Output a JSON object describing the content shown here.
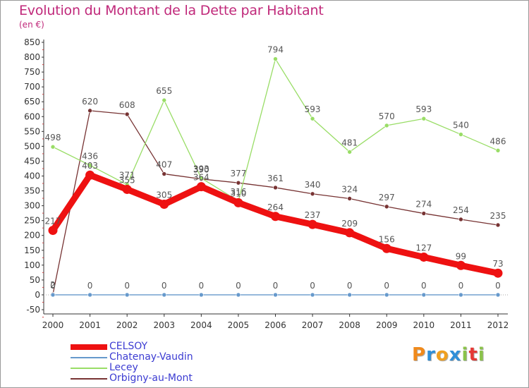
{
  "chart_data": {
    "type": "line",
    "title": "Evolution du Montant de la Dette par Habitant",
    "unit": "(en €)",
    "x": [
      "2000",
      "2001",
      "2002",
      "2003",
      "2004",
      "2005",
      "2006",
      "2007",
      "2008",
      "2009",
      "2010",
      "2011",
      "2012"
    ],
    "ylim": [
      -50,
      850
    ],
    "yticks": [
      -50,
      0,
      50,
      100,
      150,
      200,
      250,
      300,
      350,
      400,
      450,
      500,
      550,
      600,
      650,
      700,
      750,
      800,
      850
    ],
    "grid": false,
    "legend_position": "bottom-left",
    "series": [
      {
        "name": "CELSOY",
        "color": "#ee1111",
        "values": [
          217,
          403,
          355,
          305,
          364,
          310,
          264,
          237,
          209,
          156,
          127,
          99,
          73
        ],
        "labels": [
          "217",
          "403",
          "355",
          "305",
          "364",
          "310",
          "264",
          "237",
          "209",
          "156",
          "127",
          "99",
          "73"
        ]
      },
      {
        "name": "Chatenay-Vaudin",
        "color": "#6699cc",
        "values": [
          0,
          0,
          0,
          0,
          0,
          0,
          0,
          0,
          0,
          0,
          0,
          0,
          0
        ],
        "labels": [
          "0",
          "0",
          "0",
          "0",
          "0",
          "0",
          "0",
          "0",
          "0",
          "0",
          "0",
          "0",
          "0"
        ]
      },
      {
        "name": "Lecey",
        "color": "#99dd66",
        "values": [
          498,
          436,
          371,
          655,
          393,
          316,
          794,
          593,
          481,
          570,
          593,
          540,
          486
        ],
        "labels": [
          "498",
          "436",
          "371",
          "655",
          "393",
          "316",
          "794",
          "593",
          "481",
          "570",
          "593",
          "540",
          "486"
        ]
      },
      {
        "name": "Orbigny-au-Mont",
        "color": "#773333",
        "values": [
          2,
          620,
          608,
          407,
          390,
          377,
          361,
          340,
          324,
          297,
          274,
          254,
          235
        ],
        "labels": [
          "2",
          "620",
          "608",
          "407",
          "390",
          "377",
          "361",
          "340",
          "324",
          "297",
          "274",
          "254",
          "235"
        ]
      }
    ]
  },
  "logo": {
    "letters": [
      {
        "ch": "P",
        "color": "#f08a1c"
      },
      {
        "ch": "r",
        "color": "#2f8fd8"
      },
      {
        "ch": "o",
        "color": "#f0a020"
      },
      {
        "ch": "x",
        "color": "#2f8fd8"
      },
      {
        "ch": "i",
        "color": "#8bc34a"
      },
      {
        "ch": "t",
        "color": "#e53935"
      },
      {
        "ch": "i",
        "color": "#8bc34a"
      }
    ]
  }
}
